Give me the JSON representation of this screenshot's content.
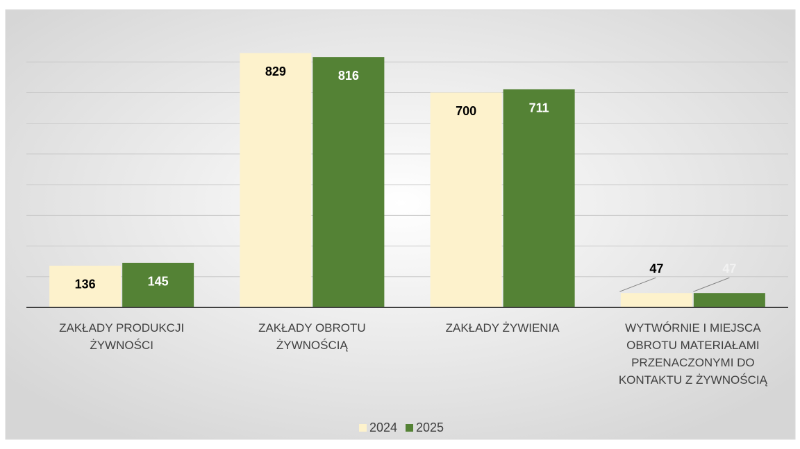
{
  "chart_data": {
    "type": "bar",
    "categories": [
      "ZAKŁADY PRODUKCJI ŻYWNOŚCI",
      "ZAKŁADY OBROTU ŻYWNOŚCIĄ",
      "ZAKŁADY ŻYWIENIA",
      "WYTWÓRNIE I MIEJSCA OBROTU MATERIAŁAMI PRZENACZONYMI DO KONTAKTU Z ŻYWNOŚCIĄ"
    ],
    "series": [
      {
        "name": "2024",
        "color": "#fdf2cc",
        "values": [
          136,
          829,
          700,
          47
        ]
      },
      {
        "name": "2025",
        "color": "#548235",
        "values": [
          145,
          816,
          711,
          47
        ]
      }
    ],
    "ylim": [
      0,
      900
    ],
    "yticks": [
      0,
      100,
      200,
      300,
      400,
      500,
      600,
      700,
      800
    ],
    "grid": true,
    "legend": "bottom"
  }
}
